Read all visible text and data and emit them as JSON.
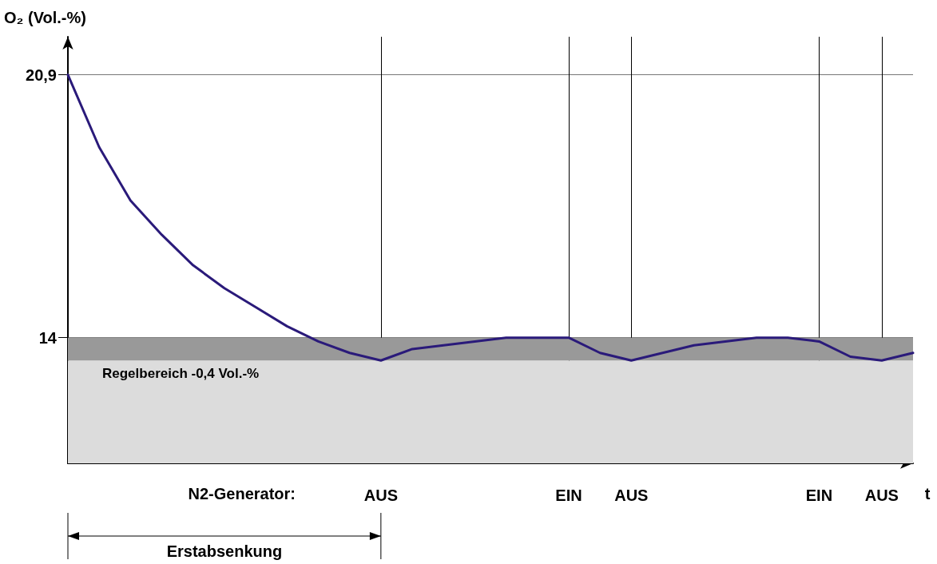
{
  "chart_data": {
    "type": "line",
    "ylabel": "O₂ (Vol.-%)",
    "xlabel": "t",
    "categories": [
      null,
      null,
      null,
      null,
      null,
      null,
      null,
      null,
      null,
      null,
      "AUS",
      null,
      null,
      null,
      null,
      null,
      "EIN",
      null,
      "AUS",
      null,
      null,
      null,
      null,
      null,
      "EIN",
      null,
      "AUS",
      null
    ],
    "series": [
      {
        "color": "#2a1a7a",
        "values": [
          20.9,
          19.0,
          17.6,
          16.7,
          15.9,
          15.3,
          14.8,
          14.3,
          13.9,
          13.6,
          13.4,
          13.7,
          13.8,
          13.9,
          14.0,
          14.0,
          14.0,
          13.6,
          13.4,
          13.6,
          13.8,
          13.9,
          14.0,
          14.0,
          13.9,
          13.5,
          13.4,
          13.6
        ]
      }
    ],
    "ylim": [
      10.7,
      21.9
    ],
    "yticks": [
      14,
      {
        "value": 20.9,
        "label": "20,9"
      }
    ],
    "grid": true,
    "marker": "none",
    "line_style": "solid",
    "bands": [
      {
        "axis": "y",
        "from": 10.7,
        "to": 13.4,
        "color": "#dcdcdc"
      },
      {
        "axis": "y",
        "from": 13.4,
        "to": 14,
        "color": "#999999",
        "label": "Regelbereich -0,4 Vol.-%"
      }
    ],
    "annotations": [
      "N2-Generator:",
      "Erstabsenkung"
    ]
  }
}
